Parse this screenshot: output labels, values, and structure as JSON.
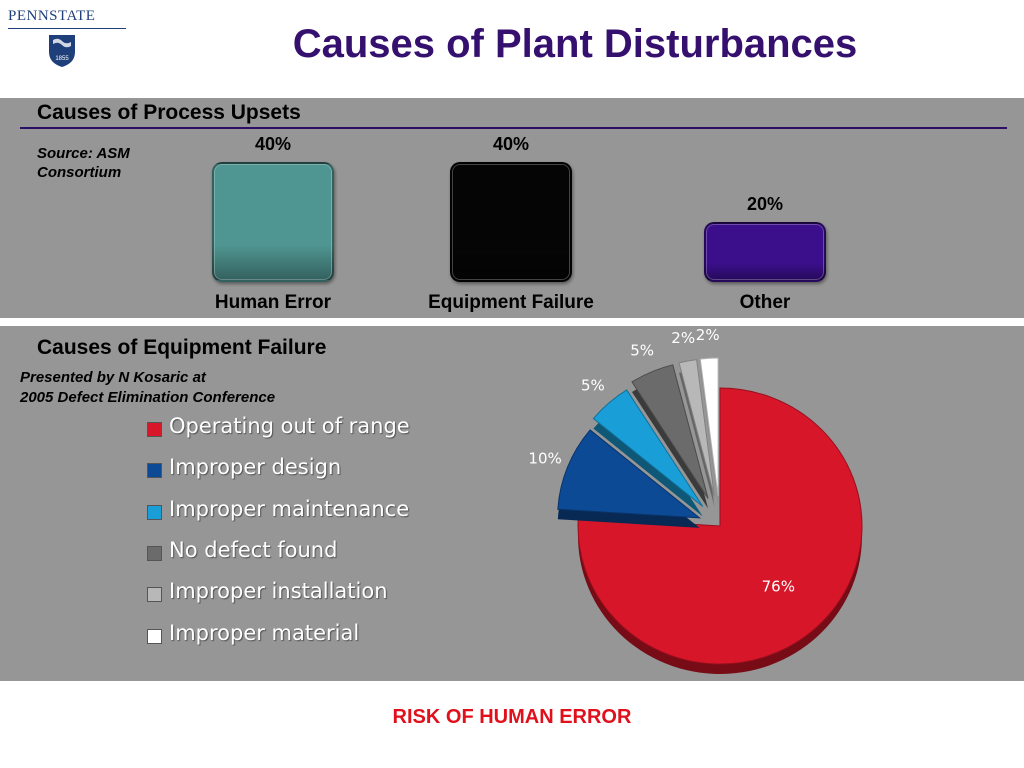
{
  "logo": {
    "text": "PENNSTATE",
    "year": "1855"
  },
  "header": {
    "title": "Causes of Plant Disturbances"
  },
  "footer": {
    "text": "RISK OF HUMAN ERROR"
  },
  "chart_data": [
    {
      "type": "bar",
      "title": "Causes of Process Upsets",
      "note": "Source: ASM Consortium",
      "categories": [
        "Human Error",
        "Equipment Failure",
        "Other"
      ],
      "values": [
        40,
        40,
        20
      ],
      "value_labels": [
        "40%",
        "40%",
        "20%"
      ],
      "colors": [
        "#4f9591",
        "#050505",
        "#3b0f8c"
      ],
      "ylim": [
        0,
        40
      ],
      "grid": false
    },
    {
      "type": "pie",
      "title": "Causes of Equipment Failure",
      "note_lines": [
        "Presented by N Kosaric at",
        "2005 Defect Elimination Conference"
      ],
      "labels": [
        "Operating out of range",
        "Improper design",
        "Improper maintenance",
        "No defect found",
        "Improper installation",
        "Improper material"
      ],
      "values": [
        76,
        10,
        5,
        5,
        2,
        2
      ],
      "value_labels": [
        "76%",
        "10%",
        "5%",
        "5%",
        "2%",
        "2%"
      ],
      "colors": [
        "#d8162a",
        "#0d4a96",
        "#1a9ed8",
        "#6b6b6b",
        "#b8b8b8",
        "#ffffff"
      ],
      "legend_position": "left"
    }
  ]
}
